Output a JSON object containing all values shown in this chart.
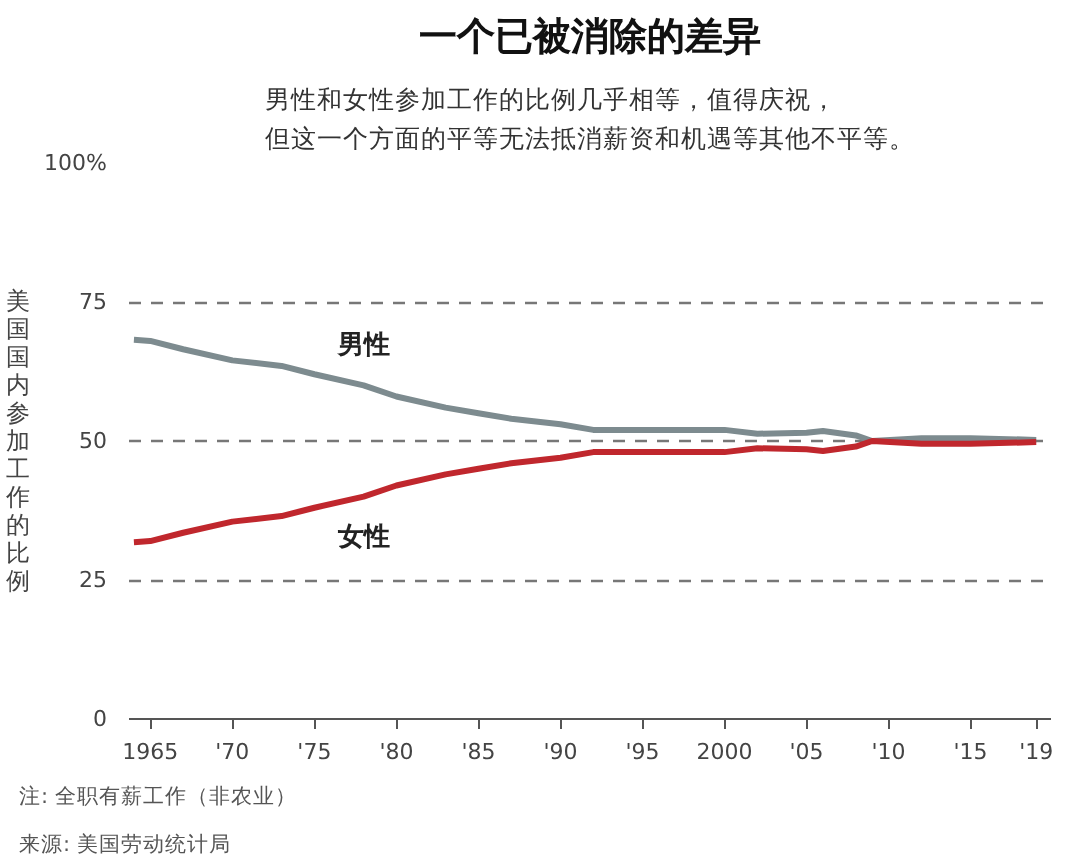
{
  "chart_data": {
    "type": "line",
    "title": "一个已被消除的差异",
    "subtitle": "男性和女性参加工作的比例几乎相等，值得庆祝，但这一个方面的平等无法抵消薪资和机遇等其他不平等。",
    "ylabel": "美国国内参加工作的比例",
    "annotations": [
      "注: 全职有薪工作（非农业）",
      "来源: 美国劳动统计局"
    ],
    "x": [
      1964,
      1965,
      1967,
      1970,
      1973,
      1975,
      1978,
      1980,
      1983,
      1985,
      1987,
      1990,
      1992,
      1995,
      2000,
      2002,
      2005,
      2006,
      2008,
      2009,
      2012,
      2015,
      2019
    ],
    "series": [
      {
        "name": "男性",
        "color": "#7d8b8f",
        "values": [
          68.2,
          68,
          66.5,
          64.5,
          63.5,
          62,
          60,
          58,
          56,
          55,
          54,
          53,
          52,
          52,
          52,
          51.3,
          51.5,
          51.8,
          51,
          50,
          50.5,
          50.5,
          50.2
        ]
      },
      {
        "name": "女性",
        "color": "#c0272d",
        "values": [
          31.8,
          32,
          33.5,
          35.5,
          36.5,
          38,
          40,
          42,
          44,
          45,
          46,
          47,
          48,
          48,
          48,
          48.7,
          48.5,
          48.2,
          49,
          50,
          49.5,
          49.5,
          49.8
        ]
      }
    ],
    "xlim": [
      1963.7,
      2019.9
    ],
    "ylim": [
      0,
      100
    ],
    "xticks": [
      {
        "value": 1965,
        "label": "1965"
      },
      {
        "value": 1970,
        "label": "'70"
      },
      {
        "value": 1975,
        "label": "'75"
      },
      {
        "value": 1980,
        "label": "'80"
      },
      {
        "value": 1985,
        "label": "'85"
      },
      {
        "value": 1990,
        "label": "'90"
      },
      {
        "value": 1995,
        "label": "'95"
      },
      {
        "value": 2000,
        "label": "2000"
      },
      {
        "value": 2005,
        "label": "'05"
      },
      {
        "value": 2010,
        "label": "'10"
      },
      {
        "value": 2015,
        "label": "'15"
      },
      {
        "value": 2019,
        "label": "'19"
      }
    ],
    "yticks": [
      0,
      25,
      50,
      75,
      {
        "value": 100,
        "label": "100%"
      }
    ],
    "grid": "y",
    "legend": false,
    "line_style": "solid",
    "marker": "none"
  }
}
